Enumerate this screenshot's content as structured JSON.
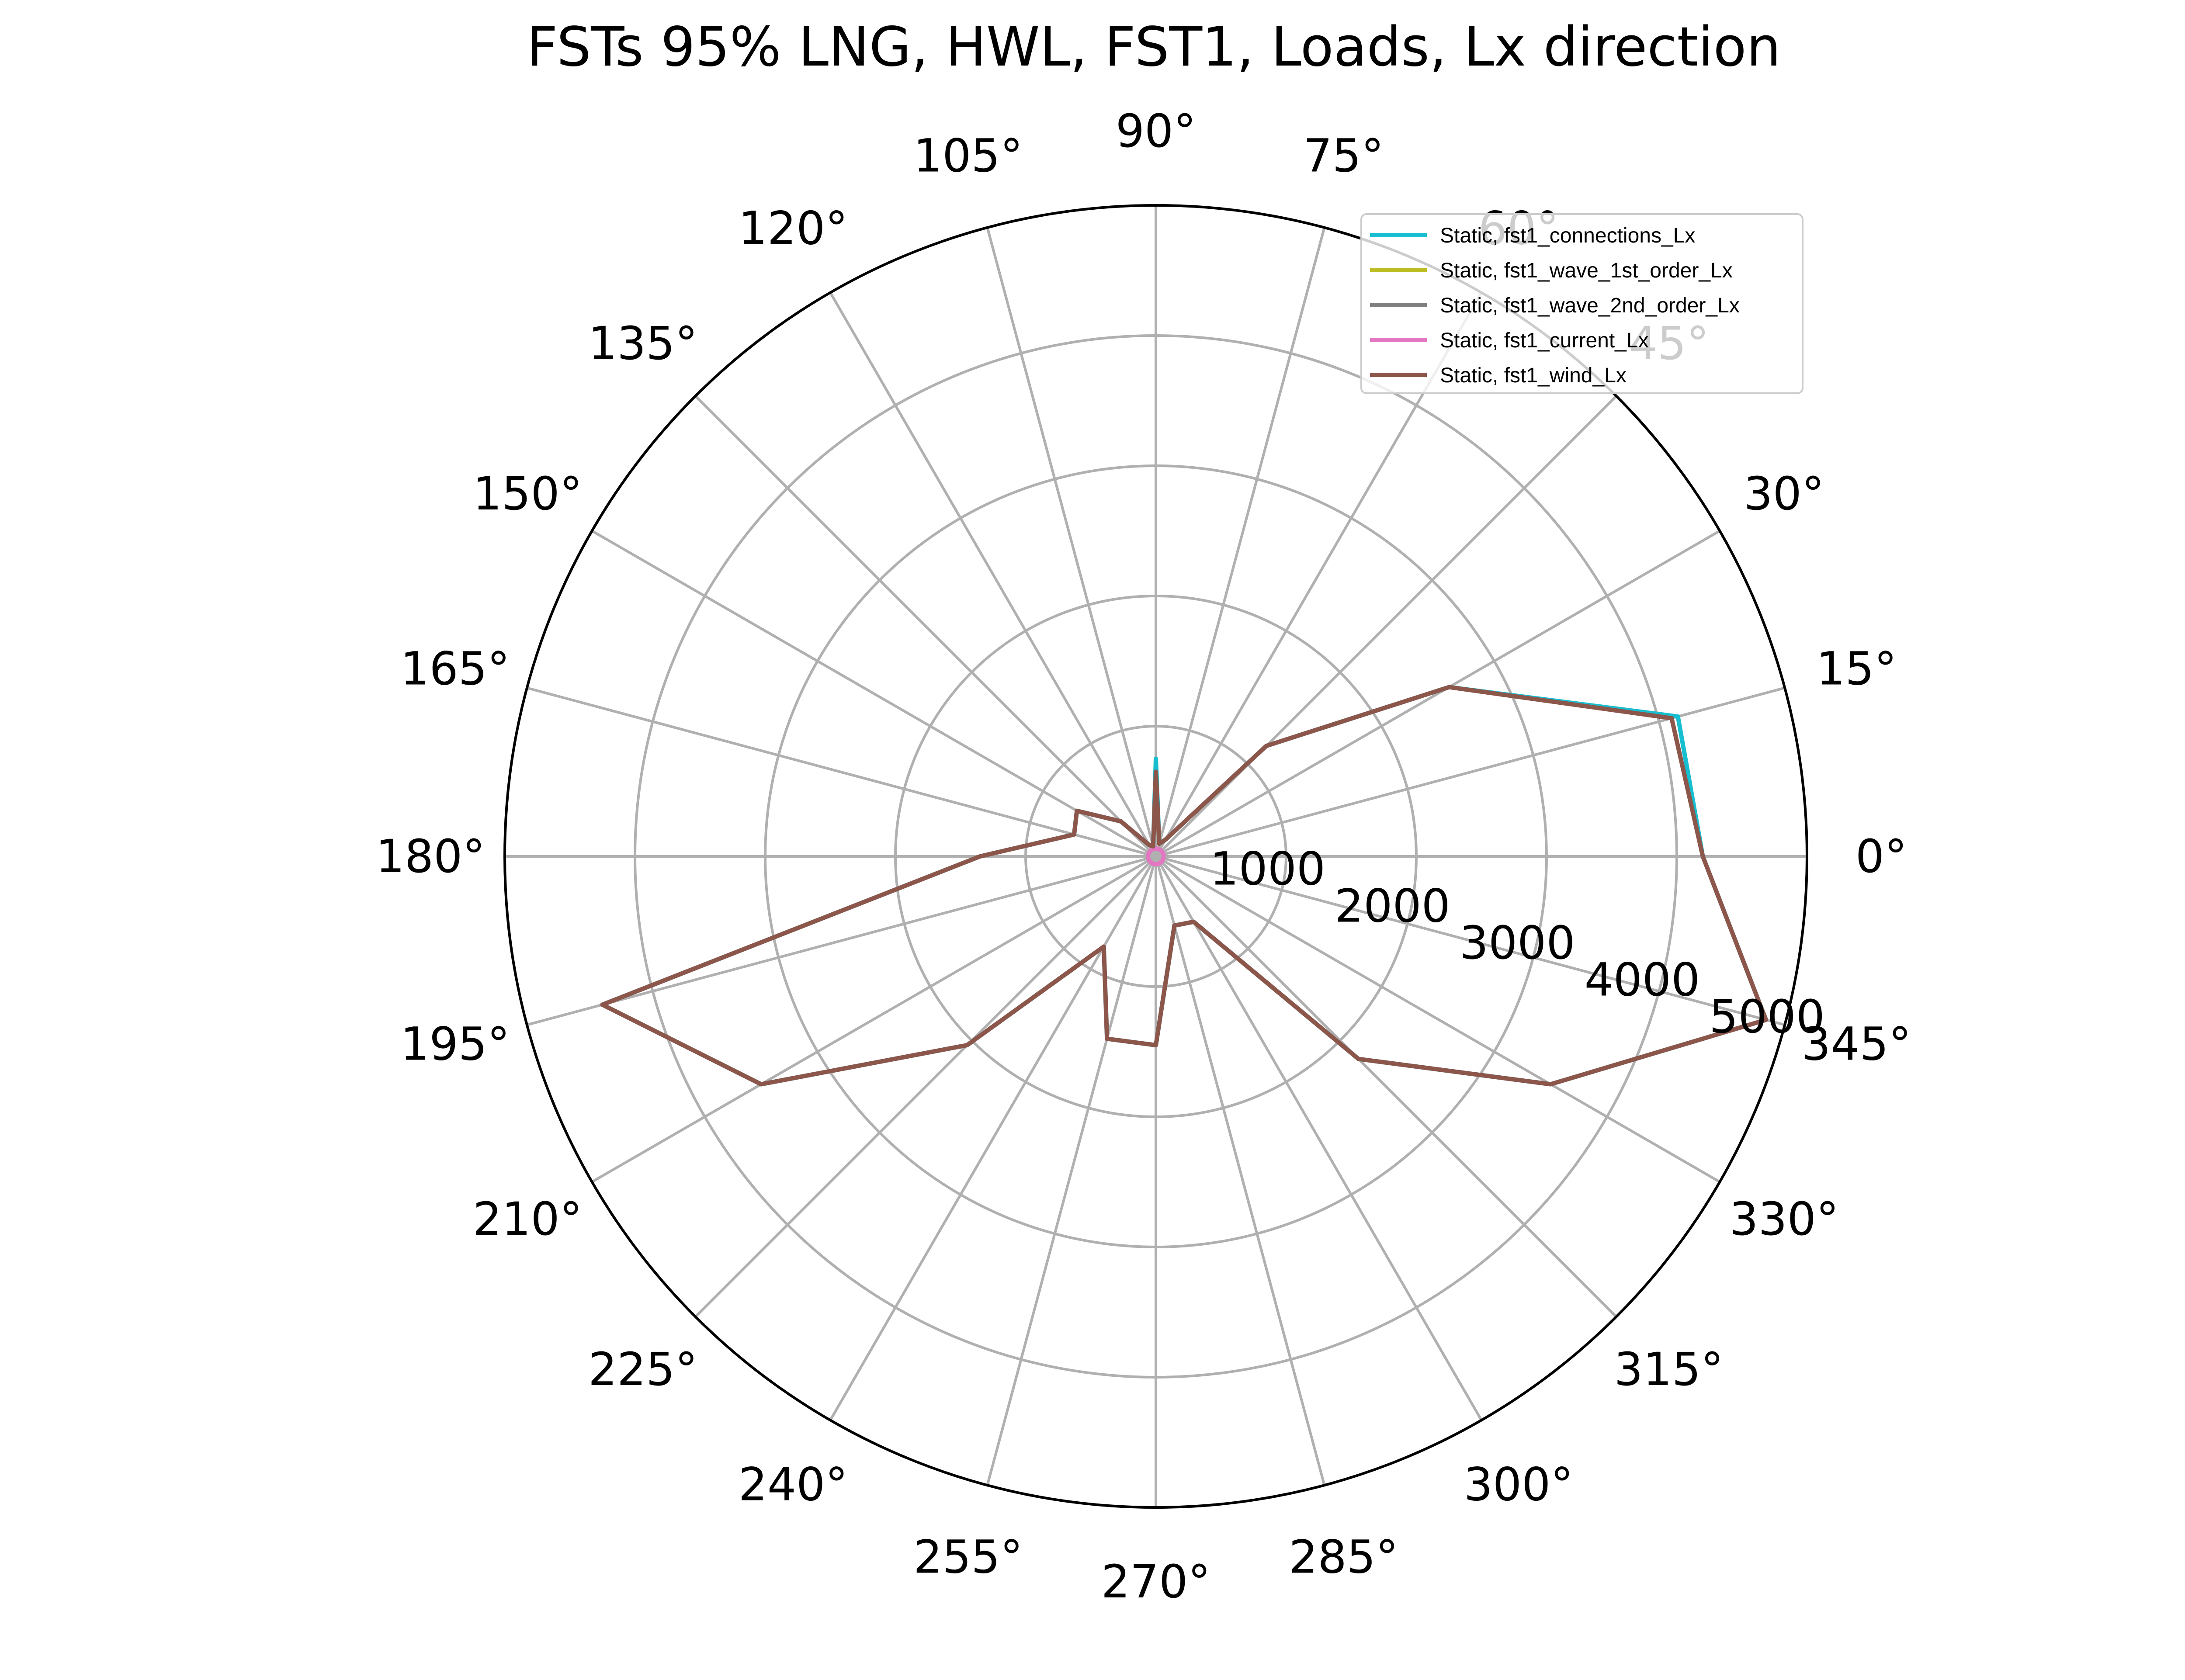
{
  "chart_data": {
    "type": "polar-line",
    "title": "FSTs 95% LNG, HWL, FST1, Loads, Lx direction",
    "theta_unit": "degrees",
    "theta_ticks": [
      "0°",
      "15°",
      "30°",
      "45°",
      "60°",
      "75°",
      "90°",
      "105°",
      "120°",
      "135°",
      "150°",
      "165°",
      "180°",
      "195°",
      "210°",
      "225°",
      "240°",
      "255°",
      "270°",
      "285°",
      "300°",
      "315°",
      "330°",
      "345°"
    ],
    "r_ticks": [
      "1000",
      "2000",
      "3000",
      "4000",
      "5000"
    ],
    "r_max": 5000,
    "grid": true,
    "legend_position": "top-right",
    "theta": [
      0,
      15,
      30,
      45,
      60,
      75,
      90,
      105,
      120,
      135,
      150,
      165,
      180,
      195,
      210,
      225,
      240,
      255,
      270,
      285,
      300,
      315,
      330,
      345,
      360
    ],
    "series": [
      {
        "name": "Static, fst1_connections_Lx",
        "color": "#17becf",
        "values": [
          4200,
          4150,
          2600,
          1200,
          150,
          100,
          750,
          80,
          100,
          380,
          700,
          650,
          1350,
          4400,
          3500,
          2050,
          800,
          1450,
          1450,
          550,
          580,
          2200,
          3500,
          4850,
          4200
        ]
      },
      {
        "name": "Static, fst1_wave_1st_order_Lx",
        "color": "#bcbd22",
        "values": [
          0,
          0,
          0,
          0,
          0,
          0,
          0,
          0,
          0,
          0,
          0,
          0,
          0,
          0,
          0,
          0,
          0,
          0,
          0,
          0,
          0,
          0,
          0,
          0,
          0
        ]
      },
      {
        "name": "Static, fst1_wave_2nd_order_Lx",
        "color": "#7f7f7f",
        "values": [
          0,
          0,
          0,
          0,
          0,
          0,
          0,
          0,
          0,
          0,
          0,
          0,
          0,
          0,
          0,
          0,
          0,
          0,
          0,
          0,
          0,
          0,
          0,
          0,
          0
        ]
      },
      {
        "name": "Static, fst1_current_Lx",
        "color": "#e377c2",
        "values": [
          60,
          60,
          60,
          60,
          60,
          60,
          60,
          60,
          60,
          60,
          60,
          60,
          60,
          60,
          60,
          60,
          60,
          60,
          60,
          60,
          60,
          60,
          60,
          60,
          60
        ]
      },
      {
        "name": "Static, fst1_wind_Lx",
        "color": "#8c564b",
        "values": [
          4200,
          4100,
          2600,
          1200,
          150,
          100,
          650,
          80,
          100,
          380,
          700,
          650,
          1350,
          4400,
          3500,
          2050,
          800,
          1450,
          1450,
          550,
          580,
          2200,
          3500,
          4850,
          4200
        ]
      }
    ]
  }
}
